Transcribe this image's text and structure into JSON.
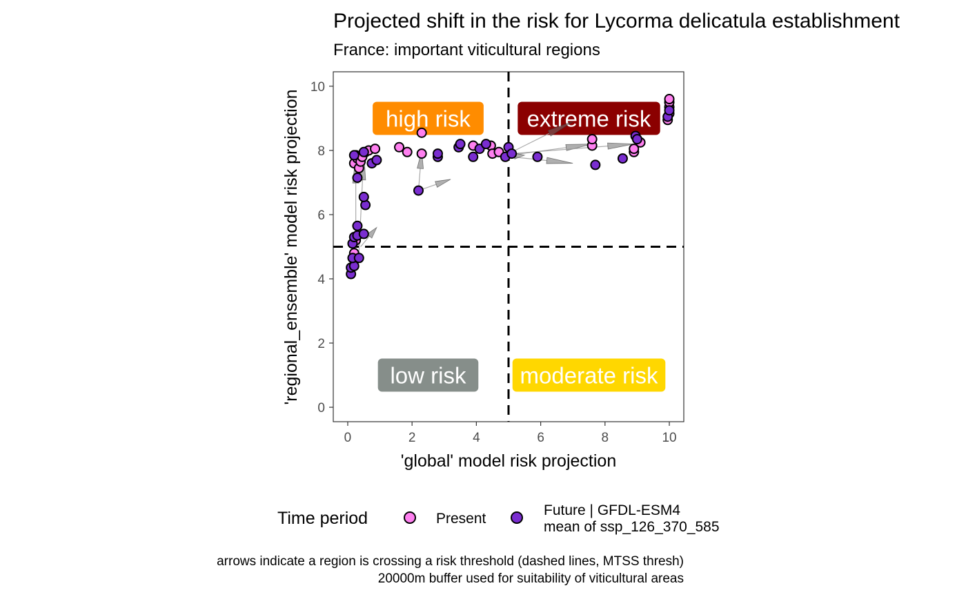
{
  "chart_data": {
    "type": "scatter",
    "title": "Projected shift in the risk for Lycorma delicatula establishment",
    "subtitle": "France: important viticultural regions",
    "xlabel": "'global' model risk projection",
    "ylabel": "'regional_ensemble' model risk projection",
    "xlim": [
      -0.45,
      10.45
    ],
    "ylim": [
      -0.45,
      10.45
    ],
    "xticks": [
      0,
      2,
      4,
      6,
      8,
      10
    ],
    "yticks": [
      0,
      2,
      4,
      6,
      8,
      10
    ],
    "thresholds": {
      "x": 5,
      "y": 5,
      "style": "dashed"
    },
    "grid": false,
    "risk_zones": [
      {
        "label": "high risk",
        "x": 2.5,
        "y": 9.0,
        "color": "#FF8C00"
      },
      {
        "label": "extreme risk",
        "x": 7.5,
        "y": 9.0,
        "color": "#8B0000"
      },
      {
        "label": "low risk",
        "x": 2.5,
        "y": 1.0,
        "color": "#868E8A"
      },
      {
        "label": "moderate risk",
        "x": 7.5,
        "y": 1.0,
        "color": "#FFD700"
      }
    ],
    "legend": {
      "title": "Time period",
      "position": "bottom",
      "entries": [
        {
          "label": "Present",
          "color": "#FF80F0"
        },
        {
          "label": "Future | GFDL-ESM4",
          "label2": "mean of ssp_126_370_585",
          "color": "#7A2DD0"
        }
      ]
    },
    "series": [
      {
        "name": "Present",
        "color": "#FF80F0",
        "points": [
          [
            0.2,
            7.6
          ],
          [
            0.25,
            7.85
          ],
          [
            0.3,
            7.75
          ],
          [
            0.35,
            7.45
          ],
          [
            0.4,
            7.65
          ],
          [
            0.45,
            7.8
          ],
          [
            0.55,
            7.95
          ],
          [
            0.65,
            8.0
          ],
          [
            0.85,
            8.05
          ],
          [
            1.6,
            8.1
          ],
          [
            1.85,
            7.95
          ],
          [
            2.3,
            8.55
          ],
          [
            2.3,
            7.9
          ],
          [
            3.45,
            8.1
          ],
          [
            3.9,
            8.15
          ],
          [
            4.45,
            8.15
          ],
          [
            4.5,
            7.9
          ],
          [
            4.7,
            7.95
          ],
          [
            7.6,
            8.15
          ],
          [
            7.6,
            8.35
          ],
          [
            8.9,
            7.95
          ],
          [
            8.9,
            8.05
          ],
          [
            9.1,
            8.25
          ],
          [
            9.95,
            8.95
          ],
          [
            10.0,
            9.15
          ],
          [
            10.0,
            9.35
          ],
          [
            10.0,
            9.5
          ],
          [
            10.0,
            9.6
          ],
          [
            0.2,
            4.8
          ],
          [
            0.25,
            5.2
          ]
        ]
      },
      {
        "name": "Future | GFDL-ESM4 mean of ssp_126_370_585",
        "color": "#7A2DD0",
        "points": [
          [
            0.1,
            4.15
          ],
          [
            0.1,
            4.35
          ],
          [
            0.2,
            4.4
          ],
          [
            0.15,
            4.65
          ],
          [
            0.35,
            4.65
          ],
          [
            0.15,
            5.1
          ],
          [
            0.2,
            5.3
          ],
          [
            0.3,
            5.35
          ],
          [
            0.5,
            5.4
          ],
          [
            0.3,
            5.65
          ],
          [
            0.55,
            6.3
          ],
          [
            0.5,
            6.55
          ],
          [
            0.3,
            7.15
          ],
          [
            0.75,
            7.6
          ],
          [
            0.9,
            7.7
          ],
          [
            0.2,
            7.85
          ],
          [
            0.5,
            7.95
          ],
          [
            2.2,
            6.75
          ],
          [
            2.8,
            7.8
          ],
          [
            2.8,
            7.9
          ],
          [
            3.45,
            8.1
          ],
          [
            3.5,
            8.2
          ],
          [
            3.9,
            7.8
          ],
          [
            4.1,
            8.05
          ],
          [
            4.3,
            8.2
          ],
          [
            4.9,
            7.8
          ],
          [
            5.0,
            8.1
          ],
          [
            5.1,
            7.9
          ],
          [
            5.9,
            7.8
          ],
          [
            7.7,
            7.55
          ],
          [
            8.55,
            7.75
          ],
          [
            8.95,
            8.45
          ],
          [
            9.0,
            8.35
          ],
          [
            9.95,
            9.05
          ],
          [
            10.0,
            9.25
          ]
        ]
      }
    ],
    "arrows": [
      {
        "from": [
          0.25,
          4.8
        ],
        "to": [
          0.25,
          7.8
        ]
      },
      {
        "from": [
          0.35,
          4.85
        ],
        "to": [
          0.5,
          7.9
        ]
      },
      {
        "from": [
          0.4,
          5.0
        ],
        "to": [
          0.9,
          5.6
        ]
      },
      {
        "from": [
          2.2,
          6.75
        ],
        "to": [
          3.2,
          7.1
        ]
      },
      {
        "from": [
          2.2,
          6.75
        ],
        "to": [
          2.3,
          8.0
        ]
      },
      {
        "from": [
          5.0,
          7.9
        ],
        "to": [
          7.0,
          8.9
        ]
      },
      {
        "from": [
          5.05,
          7.85
        ],
        "to": [
          7.6,
          8.2
        ]
      },
      {
        "from": [
          5.1,
          7.9
        ],
        "to": [
          8.9,
          8.2
        ]
      },
      {
        "from": [
          5.1,
          7.8
        ],
        "to": [
          7.0,
          7.6
        ]
      },
      {
        "from": [
          4.8,
          7.8
        ],
        "to": [
          5.5,
          7.85
        ]
      }
    ]
  },
  "caption": {
    "line1": "arrows indicate a region is crossing a risk threshold (dashed lines, MTSS thresh)",
    "line2": "20000m buffer used for suitability of viticultural areas"
  }
}
